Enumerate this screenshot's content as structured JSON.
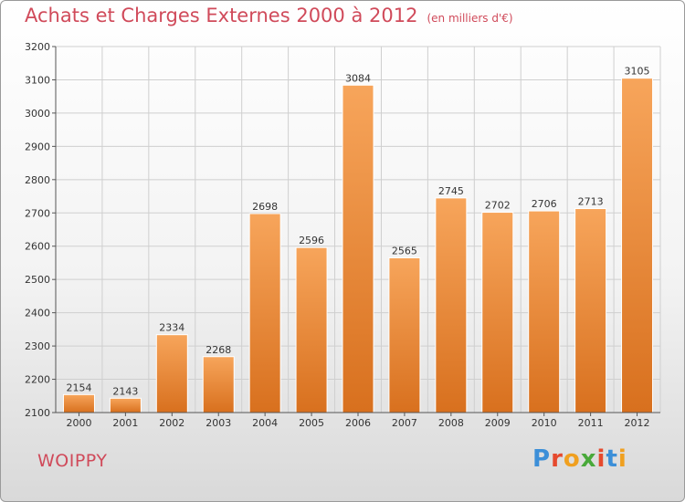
{
  "header": {
    "title": "Achats et Charges Externes 2000 à 2012",
    "unit": "(en milliers d'€)"
  },
  "footer": {
    "commune": "WOIPPY",
    "brand": "Proxiti",
    "brand_colors": [
      "#3c8fd8",
      "#e64a2e",
      "#f0a020",
      "#49a93a",
      "#e64a2e",
      "#3c8fd8",
      "#f0a020"
    ]
  },
  "colors": {
    "bar_top": "#f7a55b",
    "bar_bottom": "#d8701e",
    "title": "#d04a5a",
    "grid": "#cfcfcf"
  },
  "chart_data": {
    "type": "bar",
    "title": "Achats et Charges Externes 2000 à 2012",
    "categories": [
      "2000",
      "2001",
      "2002",
      "2003",
      "2004",
      "2005",
      "2006",
      "2007",
      "2008",
      "2009",
      "2010",
      "2011",
      "2012"
    ],
    "values": [
      2154,
      2143,
      2334,
      2268,
      2698,
      2596,
      3084,
      2565,
      2745,
      2702,
      2706,
      2713,
      3105
    ],
    "ylim": [
      2100,
      3200
    ],
    "yticks": [
      2100,
      2200,
      2300,
      2400,
      2500,
      2600,
      2700,
      2800,
      2900,
      3000,
      3100,
      3200
    ],
    "grid": true,
    "legend": "none"
  }
}
